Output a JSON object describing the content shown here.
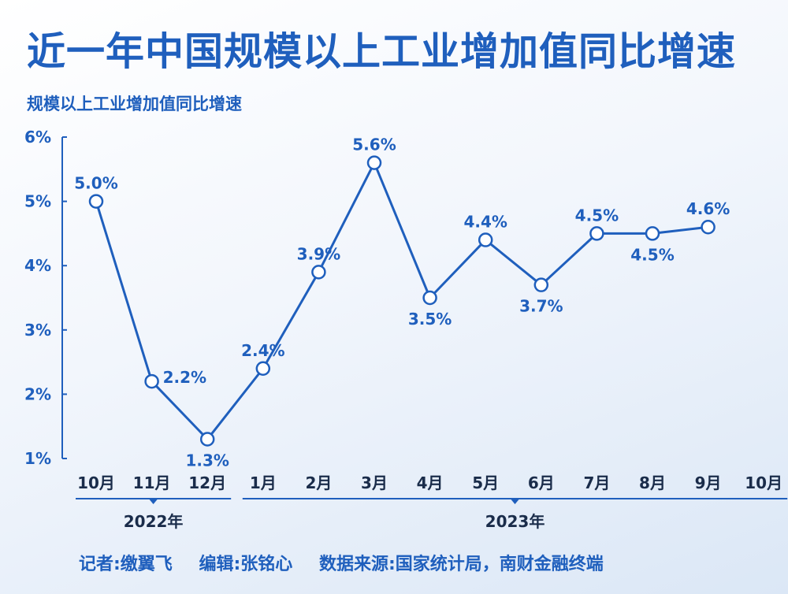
{
  "title": "近一年中国规模以上工业增加值同比增速",
  "subtitle": "规模以上工业增加值同比增速",
  "footer": {
    "reporter": "记者:缴翼飞",
    "editor": "编辑:张铭心",
    "source": "数据来源:国家统计局，南财金融终端"
  },
  "colors": {
    "accent": "#1f5fbd",
    "point_fill": "#ffffff"
  },
  "chart_data": {
    "type": "line",
    "title": "规模以上工业增加值同比增速",
    "categories": [
      "10月",
      "11月",
      "12月",
      "1月",
      "2月",
      "3月",
      "4月",
      "5月",
      "6月",
      "7月",
      "8月",
      "9月",
      "10月"
    ],
    "x_groups": [
      {
        "label": "2022年",
        "from": 0,
        "to": 2
      },
      {
        "label": "2023年",
        "from": 3,
        "to": 12
      }
    ],
    "points": [
      {
        "x": "2022年10月",
        "y": 5.0,
        "label": "5.0%"
      },
      {
        "x": "2022年11月",
        "y": 2.2,
        "label": "2.2%"
      },
      {
        "x": "2022年12月",
        "y": 1.3,
        "label": "1.3%"
      },
      {
        "x": "2023年1月",
        "y": null,
        "label": ""
      },
      {
        "x": "2023年2月",
        "y": 2.4,
        "label": "2.4%"
      },
      {
        "x": "2023年3月",
        "y": 3.9,
        "label": "3.9%"
      },
      {
        "x": "2023年4月",
        "y": 5.6,
        "label": "5.6%"
      },
      {
        "x": "2023年5月",
        "y": 3.5,
        "label": "3.5%"
      },
      {
        "x": "2023年6月",
        "y": 4.4,
        "label": "4.4%"
      },
      {
        "x": "2023年7月",
        "y": 3.7,
        "label": "3.7%"
      },
      {
        "x": "2023年8月",
        "y": 4.5,
        "label": "4.5%"
      },
      {
        "x": "2023年9月",
        "y": 4.5,
        "label": "4.5%"
      },
      {
        "x": "2023年10月",
        "y": 4.6,
        "label": "4.6%"
      }
    ],
    "label_positions": [
      "above",
      "right",
      "below",
      "",
      "above",
      "above",
      "above",
      "below",
      "above",
      "below",
      "above",
      "below",
      "above"
    ],
    "yticks": [
      "1%",
      "2%",
      "3%",
      "4%",
      "5%",
      "6%"
    ],
    "ylim": [
      1,
      6
    ],
    "grid": false,
    "legend": "none"
  }
}
